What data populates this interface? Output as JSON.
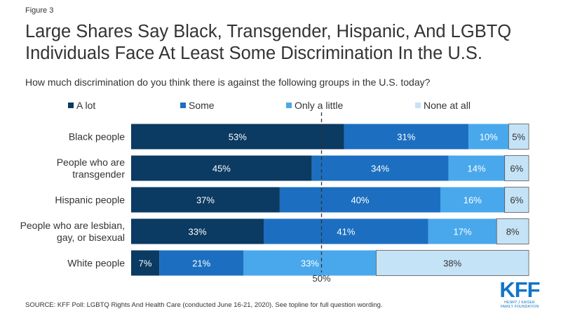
{
  "figure_label": "Figure 3",
  "title": "Large Shares Say Black, Transgender, Hispanic, And LGBTQ Individuals Face At Least Some Discrimination In the U.S.",
  "subtitle": "How much discrimination do you think there is against the following groups in the U.S. today?",
  "source": "SOURCE: KFF Poll: LGBTQ Rights And Health Care (conducted June 16-21, 2020). See topline for full question wording.",
  "logo": {
    "mark": "KFF",
    "line1": "HENRY J KAISER",
    "line2": "FAMILY FOUNDATION"
  },
  "colors": {
    "a_lot": "#0b3a62",
    "some": "#1c6fc0",
    "only_a_little": "#49a8ec",
    "none_at_all": "#c5e3f7",
    "text": "#333333",
    "reference_line": "#333333"
  },
  "chart_data": {
    "type": "bar",
    "orientation": "horizontal",
    "stacked": true,
    "title": "Large Shares Say Black, Transgender, Hispanic, And LGBTQ Individuals Face At Least Some Discrimination In the U.S.",
    "subtitle": "How much discrimination do you think there is against the following groups in the U.S. today?",
    "categories": [
      [
        "Black people"
      ],
      [
        "People who are",
        "transgender"
      ],
      [
        "Hispanic people"
      ],
      [
        "People who are lesbian,",
        "gay, or bisexual"
      ],
      [
        "White people"
      ]
    ],
    "series": [
      {
        "name": "A lot",
        "values": [
          53,
          45,
          37,
          33,
          7
        ]
      },
      {
        "name": "Some",
        "values": [
          31,
          34,
          40,
          41,
          21
        ]
      },
      {
        "name": "Only a little",
        "values": [
          10,
          14,
          16,
          17,
          33
        ]
      },
      {
        "name": "None at all",
        "values": [
          5,
          6,
          6,
          8,
          38
        ]
      }
    ],
    "value_suffix": "%",
    "reference_line": {
      "value": 50,
      "label": "50%"
    },
    "legend_position": "top",
    "grid": false
  }
}
